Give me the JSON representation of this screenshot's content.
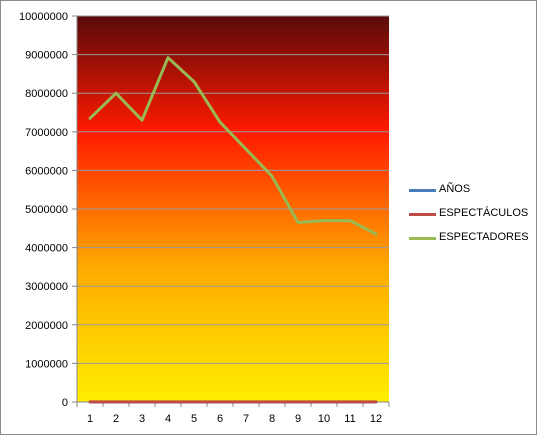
{
  "chart_data": {
    "type": "line",
    "x": [
      1,
      2,
      3,
      4,
      5,
      6,
      7,
      8,
      9,
      10,
      11,
      12
    ],
    "ylim": [
      0,
      10000000
    ],
    "yticks": [
      "0",
      "1000000",
      "2000000",
      "3000000",
      "4000000",
      "5000000",
      "6000000",
      "7000000",
      "8000000",
      "9000000",
      "10000000"
    ],
    "grid": true,
    "legend_position": "right",
    "background_gradient": [
      "#5a0a0a",
      "#ff1a00",
      "#ffaa00",
      "#ffee00"
    ],
    "series": [
      {
        "name": "AÑOS",
        "color": "#4a7ebb",
        "values": [
          1,
          2,
          3,
          4,
          5,
          6,
          7,
          8,
          9,
          10,
          11,
          12
        ]
      },
      {
        "name": "ESPECTÁCULOS",
        "color": "#be4b48",
        "values": [
          2500,
          2600,
          2400,
          2700,
          2600,
          2500,
          2400,
          2300,
          2200,
          2100,
          2100,
          2000
        ]
      },
      {
        "name": "ESPECTADORES",
        "color": "#98b954",
        "values": [
          7350000,
          8000000,
          7300000,
          8920000,
          8300000,
          7250000,
          6550000,
          5850000,
          4650000,
          4700000,
          4700000,
          4350000
        ]
      }
    ]
  }
}
